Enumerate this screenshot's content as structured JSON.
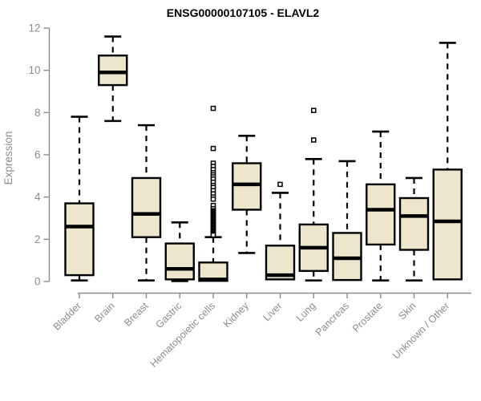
{
  "page": {
    "title": "ENSG00000107105 - ELAVL2"
  },
  "chart_data": {
    "type": "boxplot",
    "title": "ENSG00000107105 - ELAVL2",
    "xlabel": "",
    "ylabel": "Expression",
    "ylim": [
      0,
      12
    ],
    "yticks": [
      0,
      2,
      4,
      6,
      8,
      10,
      12
    ],
    "grid": false,
    "legend": "none",
    "colors": {
      "box_fill": "#EDE6CD",
      "box_stroke": "#000000",
      "median": "#000000",
      "whisker": "#000000",
      "axis": "#8c8c8c",
      "tick_label": "#8c8c8c",
      "title": "#000000",
      "background": "#ffffff"
    },
    "categories": [
      "Bladder",
      "Brain",
      "Breast",
      "Gastric",
      "Hematopoietic cells",
      "Kidney",
      "Liver",
      "Lung",
      "Pancreas",
      "Prostate",
      "Skin",
      "Unknown / Other"
    ],
    "boxes": [
      {
        "label": "Bladder",
        "whisker_low": 0.05,
        "q1": 0.3,
        "median": 2.6,
        "q3": 3.7,
        "whisker_high": 7.8,
        "outliers": []
      },
      {
        "label": "Brain",
        "whisker_low": 7.6,
        "q1": 9.3,
        "median": 9.9,
        "q3": 10.7,
        "whisker_high": 11.6,
        "outliers": []
      },
      {
        "label": "Breast",
        "whisker_low": 0.05,
        "q1": 2.1,
        "median": 3.2,
        "q3": 4.9,
        "whisker_high": 7.4,
        "outliers": []
      },
      {
        "label": "Gastric",
        "whisker_low": 0.02,
        "q1": 0.1,
        "median": 0.6,
        "q3": 1.8,
        "whisker_high": 2.8,
        "outliers": []
      },
      {
        "label": "Hematopoietic cells",
        "whisker_low": 0.02,
        "q1": 0.03,
        "median": 0.1,
        "q3": 0.9,
        "whisker_high": 2.1,
        "outliers": [
          8.2,
          6.3,
          5.6,
          5.45,
          5.3,
          5.15,
          5.05,
          4.95,
          4.85,
          4.7,
          4.55,
          4.45,
          4.3,
          4.15,
          4.0,
          3.9,
          3.6,
          3.45,
          3.35,
          3.3,
          3.25,
          3.2,
          3.15,
          3.1,
          3.05,
          3.0,
          2.95,
          2.9,
          2.85,
          2.8,
          2.75,
          2.7,
          2.65,
          2.6,
          2.55,
          2.5,
          2.45,
          2.4,
          2.35,
          2.3,
          2.25,
          2.2
        ]
      },
      {
        "label": "Kidney",
        "whisker_low": 1.35,
        "q1": 3.4,
        "median": 4.6,
        "q3": 5.6,
        "whisker_high": 6.9,
        "outliers": []
      },
      {
        "label": "Liver",
        "whisker_low": 0.05,
        "q1": 0.1,
        "median": 0.3,
        "q3": 1.7,
        "whisker_high": 4.2,
        "outliers": [
          4.6
        ]
      },
      {
        "label": "Lung",
        "whisker_low": 0.05,
        "q1": 0.5,
        "median": 1.6,
        "q3": 2.7,
        "whisker_high": 5.8,
        "outliers": [
          6.7,
          8.1
        ]
      },
      {
        "label": "Pancreas",
        "whisker_low": 0.05,
        "q1": 0.07,
        "median": 1.1,
        "q3": 2.3,
        "whisker_high": 5.7,
        "outliers": []
      },
      {
        "label": "Prostate",
        "whisker_low": 0.05,
        "q1": 1.75,
        "median": 3.4,
        "q3": 4.6,
        "whisker_high": 7.1,
        "outliers": []
      },
      {
        "label": "Skin",
        "whisker_low": 0.05,
        "q1": 1.5,
        "median": 3.1,
        "q3": 3.95,
        "whisker_high": 4.9,
        "outliers": []
      },
      {
        "label": "Unknown / Other",
        "whisker_low": 0.08,
        "q1": 0.1,
        "median": 2.85,
        "q3": 5.3,
        "whisker_high": 11.3,
        "outliers": []
      }
    ]
  }
}
